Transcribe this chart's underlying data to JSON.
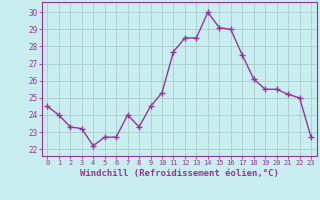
{
  "x": [
    0,
    1,
    2,
    3,
    4,
    5,
    6,
    7,
    8,
    9,
    10,
    11,
    12,
    13,
    14,
    15,
    16,
    17,
    18,
    19,
    20,
    21,
    22,
    23
  ],
  "y": [
    24.5,
    24.0,
    23.3,
    23.2,
    22.2,
    22.7,
    22.7,
    24.0,
    23.3,
    24.5,
    25.3,
    27.7,
    28.5,
    28.5,
    30.0,
    29.1,
    29.0,
    27.5,
    26.1,
    25.5,
    25.5,
    25.2,
    25.0,
    22.7
  ],
  "line_color": "#993399",
  "marker": "+",
  "marker_size": 4,
  "linewidth": 1.0,
  "xlabel": "Windchill (Refroidissement éolien,°C)",
  "xlabel_fontsize": 6.5,
  "ylabel_ticks": [
    22,
    23,
    24,
    25,
    26,
    27,
    28,
    29,
    30
  ],
  "xticks": [
    0,
    1,
    2,
    3,
    4,
    5,
    6,
    7,
    8,
    9,
    10,
    11,
    12,
    13,
    14,
    15,
    16,
    17,
    18,
    19,
    20,
    21,
    22,
    23
  ],
  "xlim": [
    -0.5,
    23.5
  ],
  "ylim": [
    21.6,
    30.6
  ],
  "bg_color": "#c8eef0",
  "grid_color": "#aacccc",
  "tick_color": "#993399",
  "tick_label_color": "#993399",
  "spine_color": "#993399"
}
